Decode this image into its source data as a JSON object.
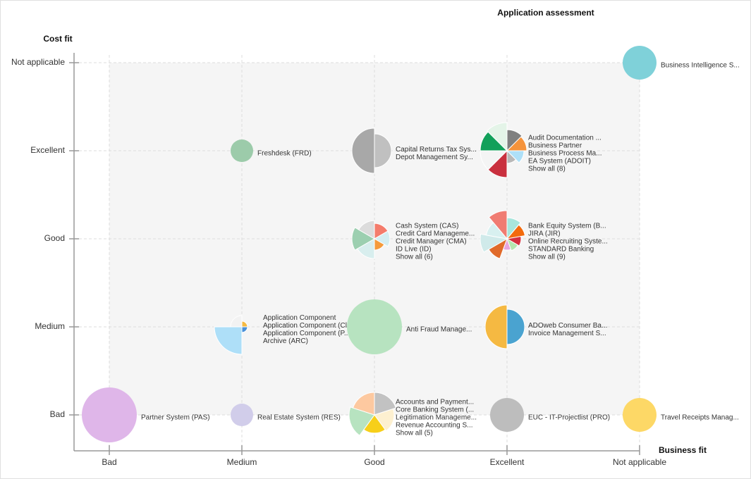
{
  "chart_data": {
    "type": "pie-matrix",
    "title": "Application assessment",
    "x_label": "Business fit",
    "y_label": "Cost fit",
    "x_categories": [
      "Bad",
      "Medium",
      "Good",
      "Excellent",
      "Not applicable"
    ],
    "y_categories": [
      "Bad",
      "Medium",
      "Good",
      "Excellent",
      "Not applicable"
    ],
    "grid": true,
    "cells": [
      {
        "x": "Bad",
        "y": "Bad",
        "labels": [
          "Partner System (PAS)"
        ],
        "slices": [
          {
            "color": "#dfb6e9",
            "size": 95
          }
        ]
      },
      {
        "x": "Medium",
        "y": "Bad",
        "labels": [
          "Real Estate System (RES)"
        ],
        "slices": [
          {
            "color": "#d1cdea",
            "size": 16
          }
        ]
      },
      {
        "x": "Good",
        "y": "Bad",
        "labels": [
          "Accounts and Payment...",
          "Core Banking System (...",
          "Legitimation Manageme...",
          "Revenue Accounting S..."
        ],
        "more": "Show all (5)",
        "slices": [
          {
            "color": "#c2c2c2",
            "size": 64
          },
          {
            "color": "#fdf0d0",
            "size": 49
          },
          {
            "color": "#f7cf1a",
            "size": 42
          },
          {
            "color": "#b7e3c0",
            "size": 81
          },
          {
            "color": "#fdc9a0",
            "size": 64
          }
        ]
      },
      {
        "x": "Excellent",
        "y": "Bad",
        "labels": [
          "EUC - IT-Projectlist (PRO)"
        ],
        "slices": [
          {
            "color": "#bdbdbd",
            "size": 36
          }
        ]
      },
      {
        "x": "Not applicable",
        "y": "Bad",
        "labels": [
          "Travel Receipts Manag..."
        ],
        "slices": [
          {
            "color": "#fdd866",
            "size": 36
          }
        ]
      },
      {
        "x": "Medium",
        "y": "Medium",
        "labels": [
          "Application Component",
          "Application Component (Cl...",
          "Application Component (P...",
          "Archive (ARC)"
        ],
        "slices": [
          {
            "color": "#f5b942",
            "size": 4
          },
          {
            "color": "#4a90d9",
            "size": 4
          },
          {
            "color": "#aedff8",
            "size": 95
          },
          {
            "color": "#f2f2f2",
            "size": 16
          }
        ]
      },
      {
        "x": "Good",
        "y": "Medium",
        "labels": [
          "Anti Fraud Manage..."
        ],
        "slices": [
          {
            "color": "#b7e3c0",
            "size": 95
          }
        ]
      },
      {
        "x": "Excellent",
        "y": "Medium",
        "labels": [
          "ADOweb Consumer Ba...",
          "Invoice Management S..."
        ],
        "slices": [
          {
            "color": "#4aa3d0",
            "size": 39
          },
          {
            "color": "#f5b942",
            "size": 60
          }
        ]
      },
      {
        "x": "Good",
        "y": "Good",
        "labels": [
          "Cash System (CAS)",
          "Credit Card Manageme...",
          "Credit Manager (CMA)",
          "ID Live (ID)"
        ],
        "more": "Show all (6)",
        "slices": [
          {
            "color": "#f47c6c",
            "size": 30
          },
          {
            "color": "#d4eef2",
            "size": 30
          },
          {
            "color": "#f59b3c",
            "size": 16
          },
          {
            "color": "#d8eeee",
            "size": 49
          },
          {
            "color": "#9ccfb0",
            "size": 64
          },
          {
            "color": "#dcdcdc",
            "size": 42
          }
        ]
      },
      {
        "x": "Excellent",
        "y": "Good",
        "labels": [
          "Bank Equity System (B...",
          "JIRA (JIR)",
          "Online Recruiting Syste...",
          "STANDARD Banking"
        ],
        "more": "Show all (9)",
        "slices": [
          {
            "color": "#a8e6dc",
            "size": 56
          },
          {
            "color": "#f36a0c",
            "size": 42
          },
          {
            "color": "#d5303e",
            "size": 25
          },
          {
            "color": "#b5e6b0",
            "size": 20
          },
          {
            "color": "#e8a6df",
            "size": 16
          },
          {
            "color": "#e06a2a",
            "size": 56
          },
          {
            "color": "#d0eaea",
            "size": 90
          },
          {
            "color": "#d8f0f0",
            "size": 56
          },
          {
            "color": "#f07c72",
            "size": 100
          }
        ]
      },
      {
        "x": "Medium",
        "y": "Excellent",
        "labels": [
          "Freshdesk (FRD)"
        ],
        "slices": [
          {
            "color": "#9ccbaa",
            "size": 16
          }
        ]
      },
      {
        "x": "Good",
        "y": "Excellent",
        "labels": [
          "Capital Returns Tax Sys...",
          "Depot Management Sy..."
        ],
        "slices": [
          {
            "color": "#c0c0c0",
            "size": 36
          },
          {
            "color": "#a8a8a8",
            "size": 64
          }
        ]
      },
      {
        "x": "Excellent",
        "y": "Excellent",
        "labels": [
          "Audit Documentation ...",
          "Business Partner",
          "Business Process Ma...",
          "EA System (ADOIT)"
        ],
        "more": "Show all (8)",
        "slices": [
          {
            "color": "#808080",
            "size": 56
          },
          {
            "color": "#f5933c",
            "size": 49
          },
          {
            "color": "#aee0f8",
            "size": 36
          },
          {
            "color": "#b8b8b8",
            "size": 20
          },
          {
            "color": "#c9303e",
            "size": 90
          },
          {
            "color": "#f4f4f4",
            "size": 90
          },
          {
            "color": "#12a05a",
            "size": 90
          },
          {
            "color": "#e4f4e8",
            "size": 100
          }
        ]
      },
      {
        "x": "Not applicable",
        "y": "Not applicable",
        "labels": [
          "Business Intelligence S..."
        ],
        "slices": [
          {
            "color": "#7fd1d9",
            "size": 36
          }
        ]
      }
    ]
  }
}
